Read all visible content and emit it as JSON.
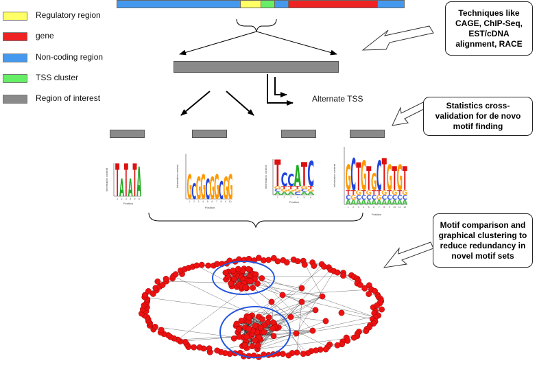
{
  "colors": {
    "regulatory": "#ffff66",
    "gene": "#ee2222",
    "noncoding": "#4499ee",
    "tss": "#66ee66",
    "roi": "#8a8a8a",
    "node": "#ee1111",
    "cluster_ring": "#2255dd"
  },
  "legend": [
    {
      "key": "regulatory",
      "label": "Regulatory region"
    },
    {
      "key": "gene",
      "label": "gene"
    },
    {
      "key": "noncoding",
      "label": "Non-coding region"
    },
    {
      "key": "tss",
      "label": "TSS cluster"
    },
    {
      "key": "roi",
      "label": "Region of interest"
    }
  ],
  "genome_bar": [
    "noncoding",
    "regulatory",
    "tss",
    "noncoding",
    "gene",
    "noncoding"
  ],
  "notes": {
    "techniques": "Techniques like CAGE, ChIP-Seq, EST/cDNA alignment, RACE",
    "statistics": "Statistics cross-validation for de novo motif finding",
    "comparison": "Motif comparison and graphical clustering to reduce redundancy in novel motif sets"
  },
  "alt_tss_label": "Alternate TSS",
  "motifs": [
    {
      "sequence": "TATATA"
    },
    {
      "sequence": "GCGGCGGCGG"
    },
    {
      "sequence": "TCCATC"
    },
    {
      "sequence": "GCTGTGCTGTGT"
    }
  ],
  "logo_axis": {
    "ylabel": "Information content",
    "xlabel": "Position"
  }
}
